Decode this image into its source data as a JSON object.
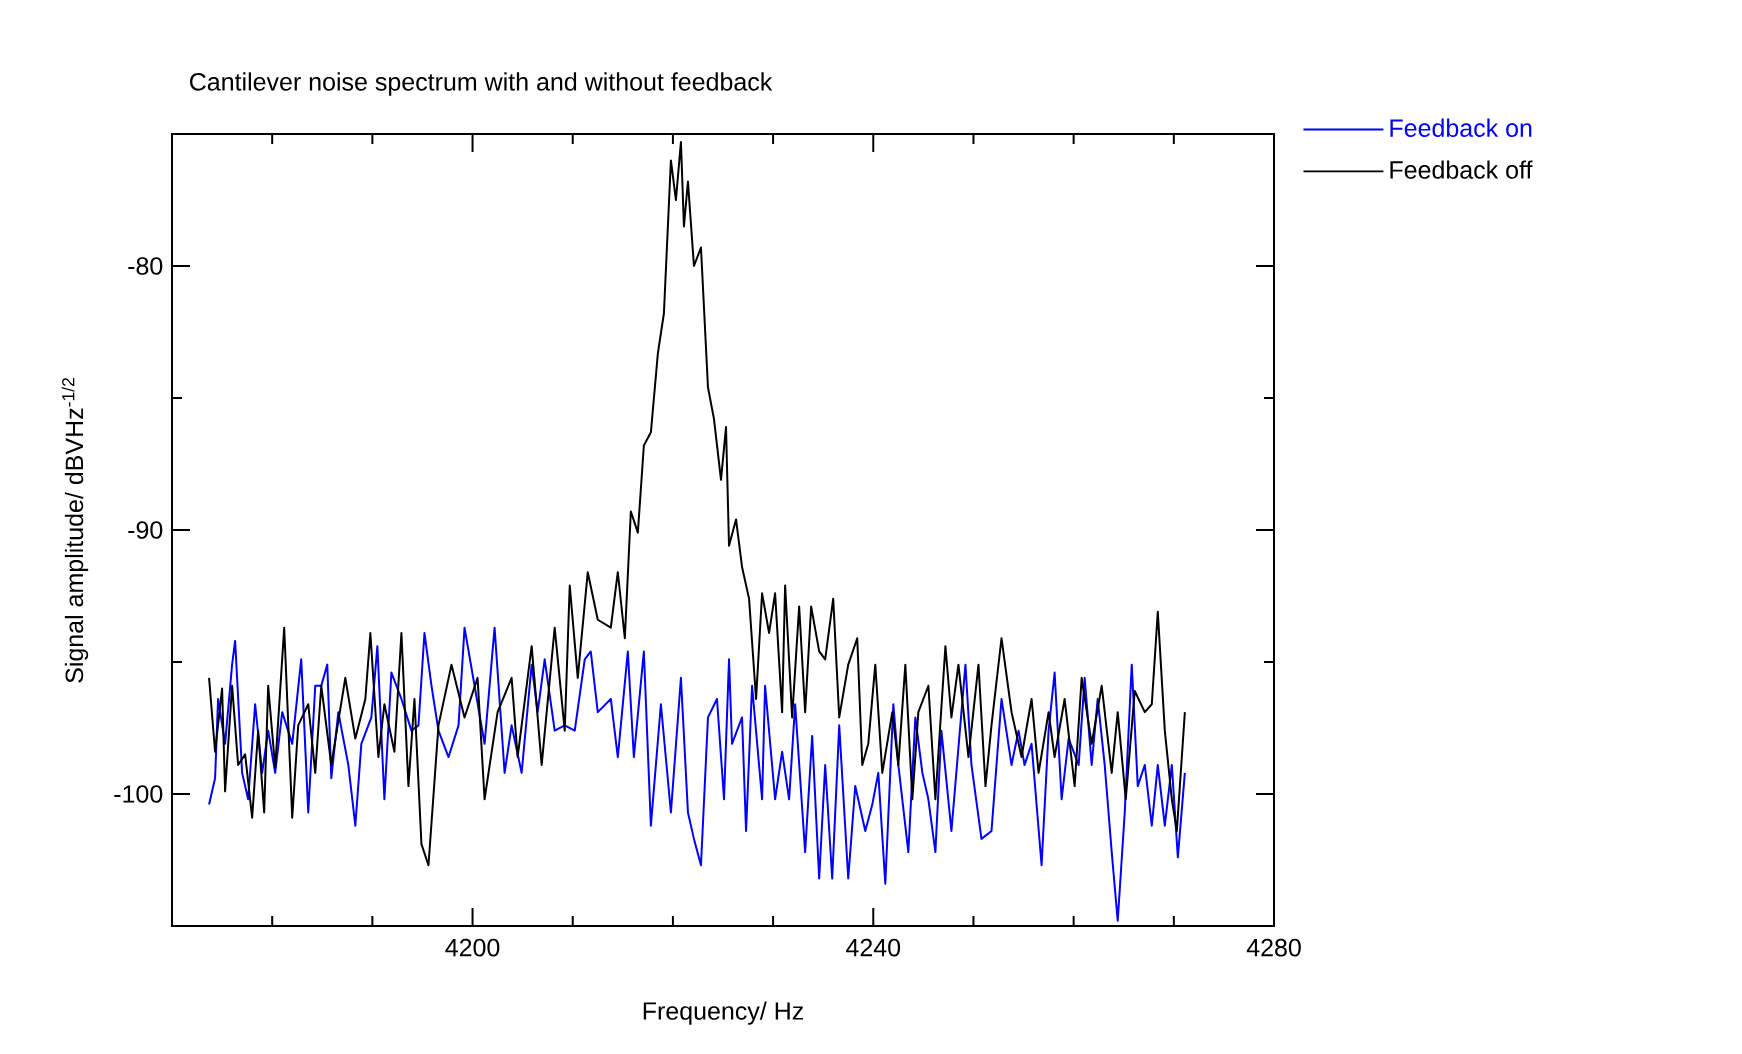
{
  "chart_data": {
    "type": "line",
    "title": "Cantilever noise spectrum with and without feedback",
    "xlabel": "Frequency/  Hz",
    "ylabel": "Signal amplitude/  dBVHz$^{-1/2}$",
    "xlim": [
      4170,
      4280
    ],
    "ylim": [
      -105,
      -75
    ],
    "xticks": [
      4200,
      4240,
      4280
    ],
    "yticks": [
      -100,
      -90,
      -80
    ],
    "grid": false,
    "legend": "top right",
    "marker": "none",
    "line_style": "solid",
    "series": [
      {
        "name": "Feedback on",
        "color": "#0000ff",
        "x": [
          4173.7,
          4174.3,
          4174.6,
          4175.3,
          4176.0,
          4176.3,
          4177.0,
          4177.6,
          4178.3,
          4179.0,
          4179.6,
          4180.3,
          4181.0,
          4182.0,
          4182.9,
          4183.6,
          4184.3,
          4184.9,
          4185.5,
          4185.9,
          4186.6,
          4187.6,
          4188.3,
          4188.9,
          4189.9,
          4190.5,
          4191.2,
          4191.9,
          4192.9,
          4193.9,
          4194.6,
          4195.2,
          4195.9,
          4196.6,
          4197.6,
          4198.6,
          4199.2,
          4200.2,
          4201.2,
          4202.2,
          4203.2,
          4203.9,
          4204.9,
          4205.9,
          4206.5,
          4207.2,
          4208.2,
          4209.2,
          4210.2,
          4211.2,
          4211.8,
          4212.5,
          4213.8,
          4214.5,
          4215.5,
          4216.1,
          4217.1,
          4217.8,
          4218.8,
          4219.8,
          4220.8,
          4221.5,
          4222.1,
          4222.8,
          4223.5,
          4224.4,
          4225.1,
          4225.6,
          4225.9,
          4226.9,
          4227.3,
          4227.9,
          4228.9,
          4229.2,
          4230.2,
          4230.9,
          4231.6,
          4232.2,
          4233.2,
          4233.9,
          4234.6,
          4235.2,
          4235.9,
          4236.6,
          4237.5,
          4238.2,
          4239.2,
          4239.9,
          4240.5,
          4241.2,
          4242.0,
          4242.5,
          4243.5,
          4244.2,
          4244.9,
          4245.5,
          4246.2,
          4246.8,
          4247.8,
          4249.2,
          4249.8,
          4250.8,
          4251.2,
          4251.8,
          4252.8,
          4253.8,
          4254.5,
          4255.1,
          4255.8,
          4256.8,
          4257.5,
          4258.1,
          4258.8,
          4259.5,
          4260.5,
          4261.1,
          4261.8,
          4262.4,
          4263.1,
          4263.8,
          4264.4,
          4265.1,
          4265.8,
          4266.4,
          4267.1,
          4267.8,
          4268.4,
          4269.1,
          4269.8,
          4270.4,
          4271.1
        ],
        "values": [
          -100.4,
          -99.4,
          -96.4,
          -98.1,
          -95.1,
          -94.2,
          -99.2,
          -100.2,
          -96.6,
          -99.2,
          -97.6,
          -99.2,
          -96.9,
          -98.1,
          -94.9,
          -100.7,
          -95.9,
          -95.9,
          -95.1,
          -99.4,
          -96.9,
          -98.9,
          -101.2,
          -98.1,
          -97.1,
          -94.4,
          -100.2,
          -95.4,
          -96.4,
          -97.6,
          -97.4,
          -93.9,
          -95.9,
          -97.6,
          -98.6,
          -97.4,
          -93.7,
          -95.9,
          -98.1,
          -93.7,
          -99.2,
          -97.4,
          -99.2,
          -95.1,
          -96.9,
          -94.9,
          -97.6,
          -97.4,
          -97.6,
          -94.9,
          -94.6,
          -96.9,
          -96.4,
          -98.6,
          -94.6,
          -98.6,
          -94.6,
          -101.2,
          -96.6,
          -100.7,
          -95.6,
          -100.7,
          -101.7,
          -102.7,
          -97.1,
          -96.4,
          -100.2,
          -94.9,
          -98.1,
          -97.1,
          -101.4,
          -95.9,
          -100.2,
          -95.9,
          -100.2,
          -98.4,
          -100.2,
          -96.6,
          -102.2,
          -97.8,
          -103.2,
          -98.9,
          -103.2,
          -97.4,
          -103.2,
          -99.7,
          -101.4,
          -100.4,
          -99.2,
          -103.4,
          -96.6,
          -98.9,
          -102.2,
          -97.1,
          -99.2,
          -100.2,
          -102.2,
          -97.6,
          -101.4,
          -95.1,
          -98.9,
          -101.7,
          null,
          -101.4,
          -96.4,
          -98.9,
          -97.6,
          -98.9,
          -98.1,
          -102.7,
          -97.6,
          -95.4,
          -100.2,
          -97.9,
          -98.9,
          -95.6,
          -98.9,
          -96.4,
          -98.9,
          -102.2,
          -104.8,
          -100.7,
          -95.1,
          -99.7,
          -98.9,
          -101.2,
          -98.9,
          -101.2,
          -98.9,
          -102.4,
          -99.2
        ]
      },
      {
        "name": "Feedback off",
        "color": "#000000",
        "x": [
          4173.7,
          4174.3,
          4175.0,
          4175.3,
          4176.0,
          4176.6,
          4177.3,
          4178.0,
          4178.6,
          4179.2,
          4179.6,
          4180.3,
          4181.2,
          4182.0,
          4182.6,
          4183.6,
          4184.3,
          4184.9,
          4185.9,
          4187.3,
          4188.3,
          4189.3,
          4189.8,
          4190.6,
          4191.2,
          4192.2,
          4192.9,
          4193.6,
          4194.2,
          4194.9,
          4195.6,
          4196.6,
          4197.9,
          4199.2,
          4200.5,
          4201.2,
          4202.5,
          4203.9,
          4204.5,
          4205.9,
          4206.9,
          4208.2,
          4209.2,
          4209.7,
          4210.5,
          4211.5,
          4212.5,
          4213.8,
          4214.5,
          4215.2,
          4215.8,
          4216.5,
          4217.1,
          4217.8,
          4218.5,
          4219.1,
          4219.8,
          4220.3,
          4220.8,
          4221.1,
          4221.5,
          4222.1,
          4222.8,
          4223.5,
          4224.1,
          4224.8,
          4225.3,
          4225.6,
          4226.3,
          4226.9,
          4227.6,
          4228.3,
          4228.9,
          4229.6,
          4230.2,
          4230.9,
          4231.2,
          4231.9,
          4232.6,
          4233.2,
          4233.8,
          4234.6,
          4235.2,
          4236.0,
          4236.6,
          4237.5,
          4238.4,
          4238.9,
          4239.5,
          4240.2,
          4240.9,
          4241.9,
          4242.5,
          4243.2,
          4243.9,
          4244.5,
          4245.5,
          4246.2,
          4247.2,
          4247.8,
          4248.5,
          4249.5,
          4250.5,
          4251.2,
          4251.8,
          4252.8,
          4253.8,
          4254.8,
          4255.8,
          4256.5,
          4257.5,
          4258.1,
          4259.1,
          4260.1,
          4260.8,
          4261.8,
          4262.8,
          4263.8,
          4264.4,
          4265.2,
          4266.1,
          4267.1,
          4267.8,
          4268.4,
          4269.1,
          4269.8,
          4270.3,
          4271.1
        ],
        "values": [
          -95.6,
          -98.4,
          -96.0,
          -99.9,
          -95.9,
          -98.9,
          -98.5,
          -100.9,
          -97.6,
          -100.7,
          -95.9,
          -99.0,
          -93.7,
          -100.9,
          -97.4,
          -96.6,
          -99.2,
          -95.9,
          -98.9,
          -95.6,
          -97.9,
          -96.4,
          -93.9,
          -98.6,
          -96.6,
          -98.4,
          -93.9,
          -99.7,
          -96.4,
          -101.9,
          -102.7,
          -97.4,
          -95.1,
          -97.1,
          -95.6,
          -100.2,
          -96.9,
          -95.6,
          -98.6,
          -94.4,
          -98.9,
          -93.7,
          -97.6,
          -92.1,
          -95.6,
          -91.6,
          -93.4,
          -93.7,
          -91.6,
          -94.1,
          -89.3,
          -90.1,
          -86.8,
          -86.3,
          -83.3,
          -81.8,
          -76.0,
          -77.5,
          -75.3,
          -78.5,
          -76.8,
          -80.0,
          -79.3,
          -84.6,
          -85.8,
          -88.1,
          -86.1,
          -90.6,
          -89.6,
          -91.4,
          -92.6,
          -96.4,
          -92.4,
          -93.9,
          -92.4,
          -96.9,
          -92.1,
          -97.1,
          -92.9,
          -96.9,
          -92.9,
          -94.6,
          -94.9,
          -92.6,
          -97.1,
          -95.1,
          -94.1,
          -98.9,
          -98.1,
          -95.1,
          -99.2,
          -96.9,
          -98.9,
          -95.1,
          -100.2,
          -96.9,
          -95.9,
          -100.2,
          -94.4,
          -97.1,
          -95.1,
          -98.6,
          -95.1,
          -99.7,
          -97.4,
          -94.1,
          -96.9,
          -98.6,
          -96.4,
          -99.2,
          -96.9,
          -98.6,
          -96.4,
          -99.7,
          -95.6,
          -98.1,
          -95.9,
          -99.2,
          -96.9,
          -100.2,
          -96.1,
          -96.9,
          -96.6,
          -93.1,
          -97.6,
          -100.2,
          -101.4,
          -96.9
        ]
      }
    ]
  }
}
